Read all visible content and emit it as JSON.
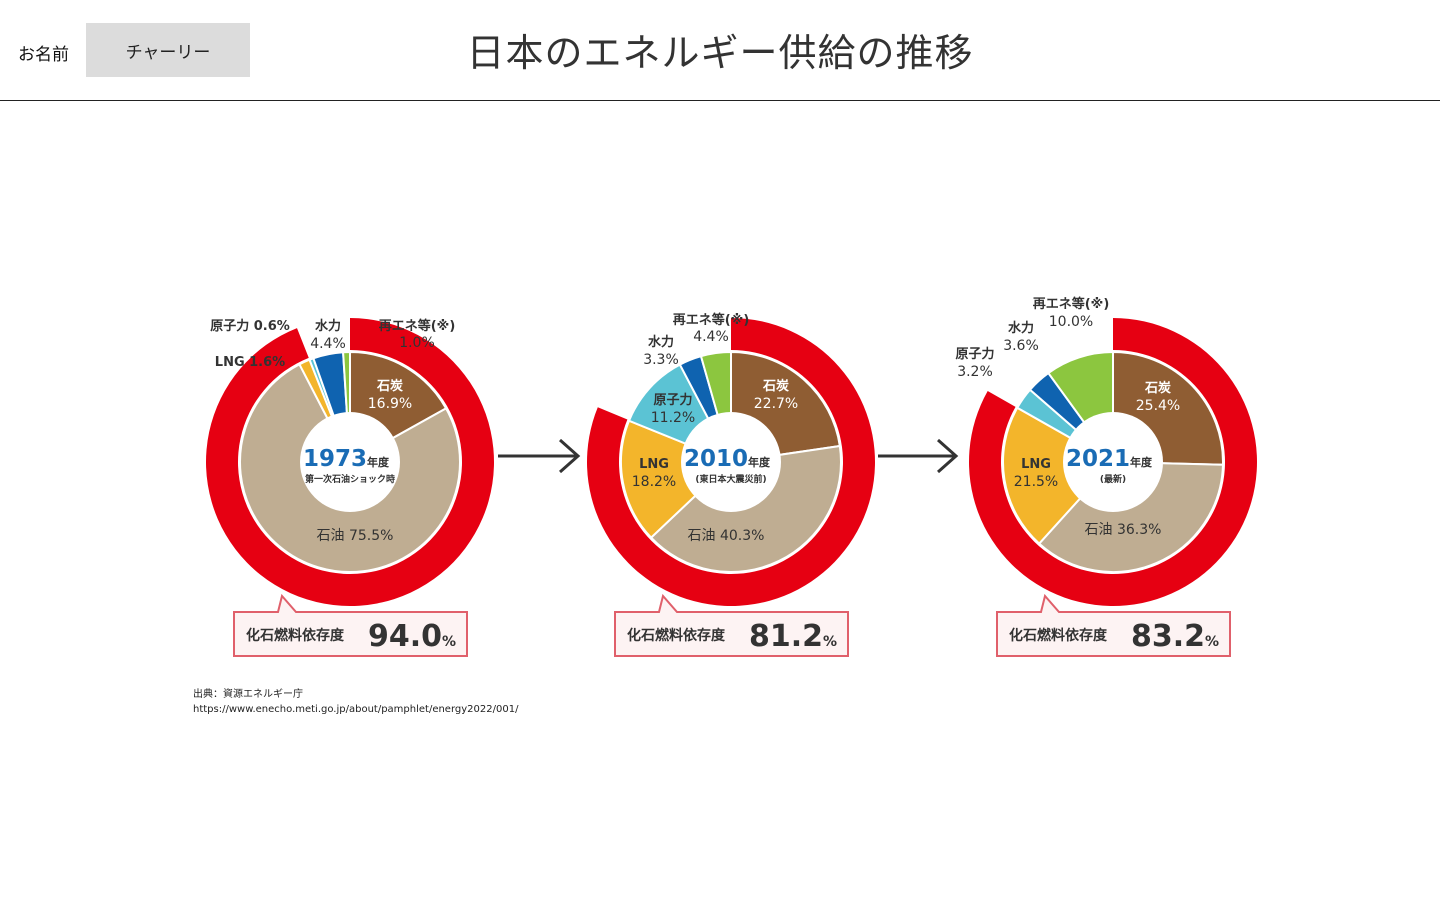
{
  "header": {
    "name_label": "お名前",
    "name_value": "チャーリー",
    "title": "日本のエネルギー供給の推移"
  },
  "colors": {
    "coal": "#8f5d33",
    "oil": "#bfad92",
    "lng": "#f3b52b",
    "nuclear": "#5bc3d4",
    "hydro": "#0f63b0",
    "renewable": "#8cc63f",
    "fossil_ring": "#e60012",
    "year_text": "#1a6cb5"
  },
  "chart_data": [
    {
      "type": "pie",
      "year": "1973",
      "year_suffix": "年度",
      "caption": "第一次石油ショック時",
      "fossil_label": "化石燃料依存度",
      "fossil_value": "94.0",
      "fossil_unit": "%",
      "fossil_share": 94.0,
      "slices": [
        {
          "key": "coal",
          "name": "石炭",
          "value": 16.9,
          "value_label": "16.9%"
        },
        {
          "key": "oil",
          "name": "石油",
          "value": 75.5,
          "value_label": "75.5%"
        },
        {
          "key": "lng",
          "name": "LNG",
          "value": 1.6,
          "value_label": "1.6%"
        },
        {
          "key": "nuclear",
          "name": "原子力",
          "value": 0.6,
          "value_label": "0.6%"
        },
        {
          "key": "hydro",
          "name": "水力",
          "value": 4.4,
          "value_label": "4.4%"
        },
        {
          "key": "renewable",
          "name": "再エネ等(※)",
          "value": 1.0,
          "value_label": "1.0%"
        }
      ]
    },
    {
      "type": "pie",
      "year": "2010",
      "year_suffix": "年度",
      "caption": "(東日本大震災前)",
      "fossil_label": "化石燃料依存度",
      "fossil_value": "81.2",
      "fossil_unit": "%",
      "fossil_share": 81.2,
      "slices": [
        {
          "key": "coal",
          "name": "石炭",
          "value": 22.7,
          "value_label": "22.7%"
        },
        {
          "key": "oil",
          "name": "石油",
          "value": 40.3,
          "value_label": "40.3%"
        },
        {
          "key": "lng",
          "name": "LNG",
          "value": 18.2,
          "value_label": "18.2%"
        },
        {
          "key": "nuclear",
          "name": "原子力",
          "value": 11.2,
          "value_label": "11.2%"
        },
        {
          "key": "hydro",
          "name": "水力",
          "value": 3.3,
          "value_label": "3.3%"
        },
        {
          "key": "renewable",
          "name": "再エネ等(※)",
          "value": 4.4,
          "value_label": "4.4%"
        }
      ]
    },
    {
      "type": "pie",
      "year": "2021",
      "year_suffix": "年度",
      "caption": "(最新)",
      "fossil_label": "化石燃料依存度",
      "fossil_value": "83.2",
      "fossil_unit": "%",
      "fossil_share": 83.2,
      "slices": [
        {
          "key": "coal",
          "name": "石炭",
          "value": 25.4,
          "value_label": "25.4%"
        },
        {
          "key": "oil",
          "name": "石油",
          "value": 36.3,
          "value_label": "36.3%"
        },
        {
          "key": "lng",
          "name": "LNG",
          "value": 21.5,
          "value_label": "21.5%"
        },
        {
          "key": "nuclear",
          "name": "原子力",
          "value": 3.2,
          "value_label": "3.2%"
        },
        {
          "key": "hydro",
          "name": "水力",
          "value": 3.6,
          "value_label": "3.6%"
        },
        {
          "key": "renewable",
          "name": "再エネ等(※)",
          "value": 10.0,
          "value_label": "10.0%"
        }
      ]
    }
  ],
  "source": {
    "label": "出典：資源エネルギー庁",
    "url": "https://www.enecho.meti.go.jp/about/pamphlet/energy2022/001/"
  }
}
